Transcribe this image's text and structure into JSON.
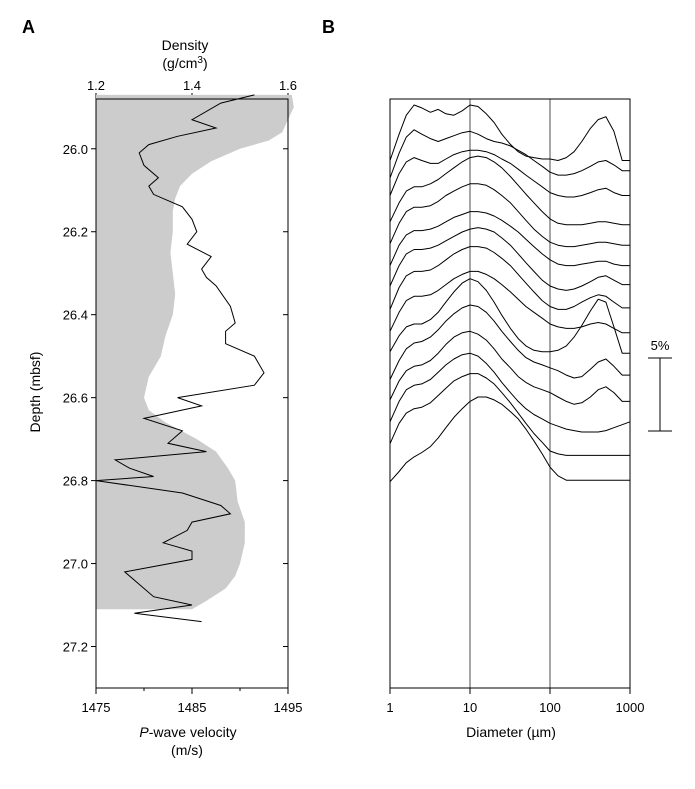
{
  "panels": {
    "a_label": "A",
    "b_label": "B"
  },
  "chart_data": [
    {
      "type": "line",
      "panel": "A",
      "top_axis_title_line1": "Density",
      "top_axis_title_line2_base": "(g/cm",
      "top_axis_title_line2_sup": "3",
      "top_axis_title_line2_end": ")",
      "bottom_axis_title_prefix": "P",
      "bottom_axis_title_rest": "-wave velocity",
      "bottom_axis_unit": "(m/s)",
      "ylabel": "Depth (mbsf)",
      "ylim": [
        25.88,
        27.3
      ],
      "density_xlim": [
        1.2,
        1.6
      ],
      "density_ticks": [
        "1.2",
        "1.4",
        "1.6"
      ],
      "velocity_xlim": [
        1475,
        1495
      ],
      "velocity_ticks": [
        "1475",
        "1485",
        "1495"
      ],
      "depth_ticks": [
        "26.0",
        "26.2",
        "26.4",
        "26.6",
        "26.8",
        "27.0",
        "27.2"
      ],
      "density_series": {
        "depth": [
          25.87,
          25.9,
          25.93,
          25.96,
          25.98,
          26.0,
          26.03,
          26.06,
          26.09,
          26.12,
          26.15,
          26.2,
          26.25,
          26.3,
          26.35,
          26.4,
          26.45,
          26.5,
          26.55,
          26.6,
          26.63,
          26.66,
          26.7,
          26.73,
          26.77,
          26.8,
          26.85,
          26.9,
          26.95,
          27.0,
          27.03,
          27.06,
          27.09,
          27.11
        ],
        "values": [
          1.608,
          1.612,
          1.6,
          1.588,
          1.56,
          1.5,
          1.44,
          1.4,
          1.375,
          1.365,
          1.36,
          1.36,
          1.355,
          1.36,
          1.365,
          1.36,
          1.345,
          1.335,
          1.31,
          1.3,
          1.31,
          1.345,
          1.41,
          1.45,
          1.475,
          1.49,
          1.495,
          1.51,
          1.51,
          1.5,
          1.49,
          1.47,
          1.43,
          1.4
        ]
      },
      "velocity_series": {
        "depth": [
          25.87,
          25.89,
          25.93,
          25.95,
          25.97,
          25.99,
          26.01,
          26.04,
          26.07,
          26.09,
          26.11,
          26.14,
          26.17,
          26.2,
          26.23,
          26.26,
          26.29,
          26.31,
          26.33,
          26.38,
          26.42,
          26.44,
          26.47,
          26.5,
          26.54,
          26.57,
          26.6,
          26.62,
          26.65,
          26.68,
          26.71,
          26.73,
          26.75,
          26.77,
          26.79,
          26.8,
          26.83,
          26.86,
          26.88,
          26.9,
          26.92,
          26.95,
          26.97,
          26.99,
          27.02,
          27.08,
          27.1,
          27.12,
          27.14
        ],
        "values": [
          1491.5,
          1488.0,
          1485.0,
          1487.5,
          1483.5,
          1480.5,
          1479.5,
          1480.0,
          1481.5,
          1480.5,
          1481.0,
          1484.0,
          1485.0,
          1485.5,
          1484.5,
          1487.0,
          1486.0,
          1486.5,
          1487.5,
          1489.0,
          1489.5,
          1488.5,
          1488.5,
          1491.5,
          1492.5,
          1491.5,
          1483.5,
          1486.0,
          1480.0,
          1484.0,
          1482.5,
          1486.5,
          1477.0,
          1478.5,
          1481.0,
          1475.0,
          1484.0,
          1488.0,
          1489.0,
          1485.0,
          1484.5,
          1482.0,
          1485.0,
          1485.0,
          1478.0,
          1481.0,
          1485.0,
          1479.0,
          1486.0
        ]
      }
    },
    {
      "type": "line",
      "panel": "B",
      "xlabel": "Diameter (µm)",
      "x_scale": "log",
      "xlim": [
        1,
        1000
      ],
      "x_ticks": [
        "1",
        "10",
        "100",
        "1000"
      ],
      "reference_lines_x": [
        10,
        100
      ],
      "scale_bar_label": "5%",
      "scale_bar_value": 5,
      "curve_count": 15,
      "curve_offsets": [
        0,
        0,
        0,
        0,
        0,
        0,
        0,
        0,
        0,
        0,
        0,
        0,
        0,
        0,
        0
      ],
      "curve_spacing_percent": 1.5,
      "x": [
        1,
        1.3,
        1.6,
        2,
        2.5,
        3.2,
        4,
        5,
        6.3,
        8,
        10,
        12.6,
        16,
        20,
        25,
        32,
        40,
        50,
        63,
        80,
        100,
        126,
        160,
        200,
        250,
        320,
        400,
        500,
        630,
        800,
        1000
      ],
      "series": [
        {
          "values": [
            1.2,
            3.0,
            4.3,
            5.0,
            4.8,
            4.5,
            4.7,
            4.4,
            4.3,
            4.6,
            5.0,
            4.9,
            4.4,
            3.8,
            3.0,
            2.3,
            1.8,
            1.5,
            1.4,
            1.3,
            1.3,
            1.2,
            1.4,
            1.8,
            2.5,
            3.4,
            4.0,
            4.2,
            3.2,
            1.2,
            1.2
          ]
        },
        {
          "values": [
            1.5,
            3.2,
            4.3,
            4.8,
            4.5,
            4.2,
            4.0,
            4.2,
            4.4,
            4.6,
            4.7,
            4.5,
            4.2,
            4.0,
            3.9,
            3.7,
            3.4,
            3.1,
            2.7,
            2.3,
            1.9,
            1.7,
            1.7,
            1.8,
            2.0,
            2.3,
            2.6,
            2.7,
            2.4,
            2.0,
            2.0
          ]
        },
        {
          "values": [
            1.8,
            3.3,
            4.1,
            4.4,
            4.2,
            4.0,
            4.0,
            4.3,
            4.6,
            4.8,
            4.9,
            4.9,
            4.8,
            4.6,
            4.3,
            4.0,
            3.6,
            3.2,
            2.8,
            2.4,
            2.0,
            1.8,
            1.7,
            1.7,
            1.8,
            2.0,
            2.2,
            2.3,
            2.0,
            1.8,
            1.8
          ]
        },
        {
          "values": [
            1.5,
            2.8,
            3.6,
            3.9,
            3.9,
            4.1,
            4.4,
            4.8,
            5.2,
            5.6,
            5.9,
            6.0,
            5.9,
            5.6,
            5.2,
            4.6,
            4.0,
            3.4,
            2.8,
            2.2,
            1.7,
            1.4,
            1.3,
            1.3,
            1.3,
            1.4,
            1.5,
            1.5,
            1.4,
            1.3,
            1.3
          ]
        },
        {
          "values": [
            1.5,
            2.9,
            3.7,
            4.0,
            4.0,
            4.1,
            4.4,
            4.8,
            5.1,
            5.4,
            5.6,
            5.6,
            5.5,
            5.2,
            4.8,
            4.3,
            3.7,
            3.1,
            2.5,
            2.0,
            1.6,
            1.4,
            1.3,
            1.3,
            1.4,
            1.5,
            1.6,
            1.6,
            1.5,
            1.4,
            1.4
          ]
        },
        {
          "values": [
            1.5,
            2.9,
            3.6,
            3.9,
            3.9,
            4.0,
            4.2,
            4.5,
            4.8,
            5.0,
            5.2,
            5.2,
            5.1,
            4.9,
            4.6,
            4.2,
            3.8,
            3.3,
            2.8,
            2.3,
            1.9,
            1.6,
            1.5,
            1.5,
            1.6,
            1.7,
            1.8,
            1.8,
            1.6,
            1.5,
            1.5
          ]
        },
        {
          "values": [
            1.6,
            3.0,
            3.8,
            4.1,
            4.1,
            4.2,
            4.4,
            4.7,
            5.0,
            5.3,
            5.5,
            5.6,
            5.5,
            5.3,
            4.9,
            4.4,
            3.8,
            3.2,
            2.6,
            2.0,
            1.6,
            1.4,
            1.3,
            1.4,
            1.6,
            1.9,
            2.2,
            2.3,
            2.0,
            1.7,
            1.7
          ]
        },
        {
          "values": [
            1.5,
            3.0,
            3.8,
            4.1,
            4.1,
            4.2,
            4.5,
            4.9,
            5.3,
            5.6,
            5.8,
            5.8,
            5.7,
            5.4,
            5.0,
            4.5,
            3.9,
            3.3,
            2.7,
            2.1,
            1.7,
            1.5,
            1.5,
            1.7,
            2.0,
            2.3,
            2.5,
            2.4,
            2.0,
            1.6,
            1.6
          ]
        },
        {
          "values": [
            1.5,
            2.8,
            3.6,
            3.9,
            3.9,
            4.0,
            4.3,
            4.7,
            5.1,
            5.4,
            5.6,
            5.6,
            5.4,
            5.1,
            4.7,
            4.2,
            3.7,
            3.2,
            2.8,
            2.4,
            2.0,
            1.8,
            1.7,
            1.7,
            1.8,
            2.0,
            2.1,
            2.0,
            1.7,
            1.4,
            1.4
          ]
        },
        {
          "values": [
            1.6,
            2.7,
            3.3,
            3.5,
            3.5,
            3.8,
            4.3,
            5.0,
            5.7,
            6.3,
            6.6,
            6.4,
            5.8,
            5.0,
            4.1,
            3.2,
            2.5,
            2.0,
            1.7,
            1.6,
            1.6,
            1.7,
            2.0,
            2.6,
            3.4,
            4.4,
            5.2,
            5.0,
            3.3,
            1.5,
            1.5
          ]
        },
        {
          "values": [
            1.2,
            2.5,
            3.3,
            3.7,
            3.8,
            4.1,
            4.6,
            5.2,
            5.7,
            6.1,
            6.3,
            6.2,
            5.8,
            5.2,
            4.5,
            3.8,
            3.2,
            2.7,
            2.4,
            2.2,
            2.0,
            1.8,
            1.5,
            1.3,
            1.4,
            1.9,
            2.4,
            2.6,
            2.1,
            1.5,
            1.5
          ]
        },
        {
          "values": [
            1.3,
            2.6,
            3.3,
            3.6,
            3.7,
            4.0,
            4.5,
            5.1,
            5.6,
            5.9,
            6.0,
            5.8,
            5.4,
            4.8,
            4.1,
            3.5,
            2.9,
            2.5,
            2.2,
            2.0,
            1.8,
            1.5,
            1.2,
            1.0,
            1.1,
            1.5,
            2.0,
            2.2,
            1.8,
            1.2,
            1.2
          ]
        },
        {
          "values": [
            1.3,
            2.7,
            3.5,
            3.8,
            3.9,
            4.2,
            4.7,
            5.2,
            5.6,
            5.9,
            6.0,
            5.8,
            5.3,
            4.7,
            4.0,
            3.3,
            2.7,
            2.2,
            1.8,
            1.5,
            1.2,
            1.0,
            0.8,
            0.7,
            0.6,
            0.6,
            0.6,
            0.7,
            0.9,
            1.1,
            1.3
          ]
        },
        {
          "values": [
            1.3,
            2.7,
            3.4,
            3.7,
            3.8,
            4.1,
            4.6,
            5.1,
            5.6,
            5.9,
            6.1,
            6.1,
            5.8,
            5.4,
            4.8,
            4.1,
            3.4,
            2.7,
            2.0,
            1.4,
            0.8,
            0.6,
            0.5,
            0.5,
            0.5,
            0.5,
            0.5,
            0.5,
            0.5,
            0.5,
            0.5
          ]
        },
        {
          "values": [
            0.2,
            0.9,
            1.5,
            1.9,
            2.2,
            2.6,
            3.2,
            3.9,
            4.6,
            5.2,
            5.7,
            6.0,
            6.0,
            5.8,
            5.5,
            5.0,
            4.5,
            3.8,
            3.0,
            2.1,
            1.2,
            0.6,
            0.3,
            0.3,
            0.3,
            0.3,
            0.3,
            0.3,
            0.3,
            0.3,
            0.3
          ]
        }
      ]
    }
  ]
}
